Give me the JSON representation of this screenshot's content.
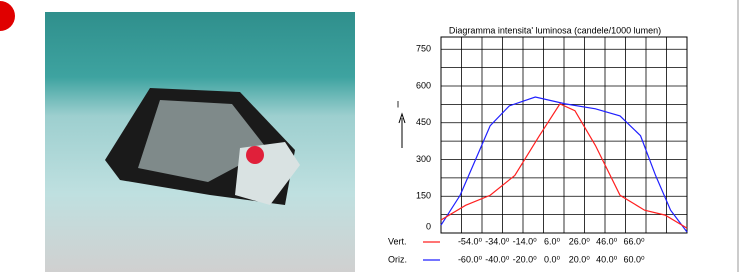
{
  "chart_data": {
    "type": "line",
    "title": "Diagramma intensita' luminosa (candele/1000 lumen)",
    "y_label": "I",
    "xlim": [
      -90,
      90
    ],
    "x2lim": [
      -84,
      96
    ],
    "xticks": [
      {
        "value": -60,
        "label": "-60.0⁰"
      },
      {
        "value": -40,
        "label": "-40.0⁰"
      },
      {
        "value": -20,
        "label": "-20.0⁰"
      },
      {
        "value": 0,
        "label": "0.0⁰"
      },
      {
        "value": 20,
        "label": "20.0⁰"
      },
      {
        "value": 40,
        "label": "40.0⁰"
      },
      {
        "value": 60,
        "label": "60.0⁰"
      }
    ],
    "x2ticks": [
      {
        "value": -54,
        "label": "-54.0⁰"
      },
      {
        "value": -34,
        "label": "-34.0⁰"
      },
      {
        "value": -14,
        "label": "-14.0⁰"
      },
      {
        "value": 6,
        "label": "6.0⁰"
      },
      {
        "value": 26,
        "label": "26.0⁰"
      },
      {
        "value": 46,
        "label": "46.0⁰"
      },
      {
        "value": 66,
        "label": "66.0⁰"
      }
    ],
    "x_grid": [
      -75,
      -60,
      -45,
      -30,
      -15,
      0,
      15,
      30,
      45,
      60,
      75
    ],
    "ylim": [
      0,
      800
    ],
    "yticks": [
      0,
      150,
      300,
      450,
      600,
      750
    ],
    "y_grid": [
      75,
      225,
      375,
      525,
      675,
      800
    ],
    "series": [
      {
        "name": "Oriz.",
        "color": "#2020ff",
        "x": [
          -90,
          -76,
          -65,
          -54,
          -40,
          -21,
          1,
          23,
          41,
          56,
          67,
          78,
          90
        ],
        "values": [
          32,
          154,
          296,
          438,
          519,
          555,
          527,
          507,
          478,
          397,
          235,
          93,
          4
        ]
      },
      {
        "name": "Vert.",
        "color": "#ff2020",
        "axis": "x2",
        "x": [
          -84,
          -66,
          -48,
          -30,
          -12,
          3,
          14,
          29,
          47,
          65,
          80,
          96
        ],
        "values": [
          53,
          113,
          154,
          235,
          397,
          527,
          499,
          357,
          154,
          93,
          73,
          20
        ]
      }
    ]
  }
}
